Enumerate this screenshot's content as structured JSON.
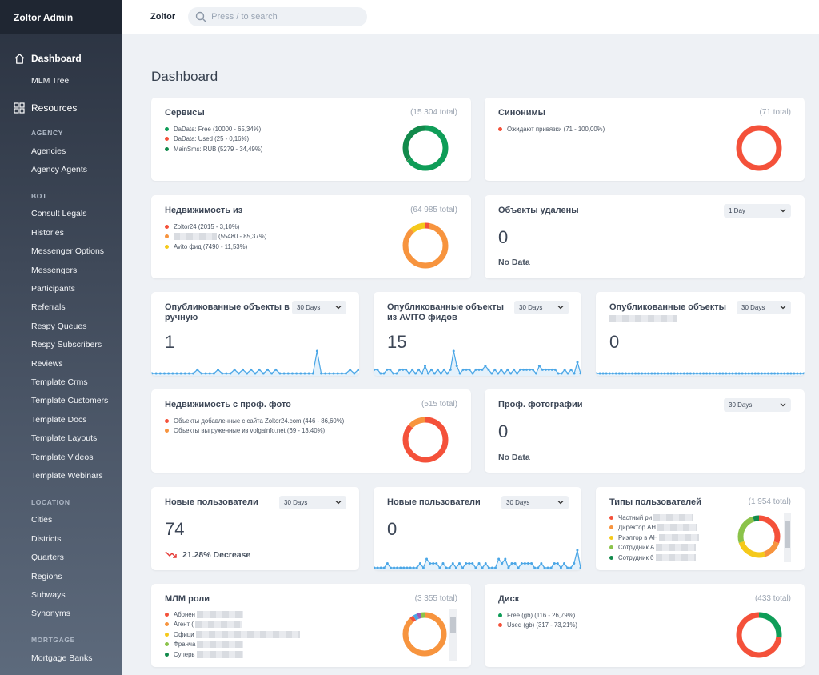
{
  "brand": "Zoltor Admin",
  "header": {
    "app": "Zoltor",
    "search_placeholder": "Press / to search"
  },
  "page_title": "Dashboard",
  "sidebar": {
    "dashboard": "Dashboard",
    "mlm_tree": "MLM Tree",
    "resources": "Resources",
    "sections": [
      {
        "title": "AGENCY",
        "items": [
          "Agencies",
          "Agency Agents"
        ]
      },
      {
        "title": "BOT",
        "items": [
          "Consult Legals",
          "Histories",
          "Messenger Options",
          "Messengers",
          "Participants",
          "Referrals",
          "Respy Queues",
          "Respy Subscribers",
          "Reviews",
          "Template Crms",
          "Template Customers",
          "Template Docs",
          "Template Layouts",
          "Template Videos",
          "Template Webinars"
        ]
      },
      {
        "title": "LOCATION",
        "items": [
          "Cities",
          "Districts",
          "Quarters",
          "Regions",
          "Subways",
          "Synonyms"
        ]
      },
      {
        "title": "MORTGAGE",
        "items": [
          "Mortgage Banks"
        ]
      }
    ]
  },
  "colors": {
    "green": "#0f9d58",
    "red": "#f4513a",
    "orange": "#f7943e",
    "yellow": "#f5c91b",
    "lightgreen": "#8bc34a",
    "darkgreen": "#128a4b",
    "blue": "#4aa6e6"
  },
  "cards": {
    "services": {
      "title": "Сервисы",
      "total": "(15 304 total)",
      "legend": [
        {
          "label": "DaData: Free (10000 - 65,34%)",
          "color": "#0f9d58"
        },
        {
          "label": "DaData: Used (25 - 0,16%)",
          "color": "#f4513a"
        },
        {
          "label": "MainSms: RUB (5279 - 34,49%)",
          "color": "#128a4b"
        }
      ]
    },
    "synonyms": {
      "title": "Синонимы",
      "total": "(71 total)",
      "legend": [
        {
          "label": "Ожидают привязки (71 - 100,00%)",
          "color": "#f4513a"
        }
      ]
    },
    "realty": {
      "title": "Недвижимость из",
      "total": "(64 985 total)",
      "legend": [
        {
          "label": "Zoltor24 (2015 - 3,10%)",
          "color": "#f4513a"
        },
        {
          "label": "(55480 - 85,37%)",
          "color": "#f7943e"
        },
        {
          "label": "Avito фид (7490 - 11,53%)",
          "color": "#f5c91b"
        }
      ]
    },
    "deleted": {
      "title": "Объекты удалены",
      "select": "1 Day",
      "value": "0",
      "nodata": "No Data"
    },
    "published_manual": {
      "title": "Опубликованные объекты в ручную",
      "select": "30 Days",
      "value": "1"
    },
    "published_avito": {
      "title": "Опубликованные объекты из AVITO фидов",
      "select": "30 Days",
      "value": "15"
    },
    "published_other": {
      "title": "Опубликованные объекты",
      "select": "30 Days",
      "value": "0"
    },
    "prof_photo_realty": {
      "title": "Недвижимость с проф. фото",
      "total": "(515 total)",
      "legend": [
        {
          "label": "Объекты добавленные с сайта Zoltor24.com (446 - 86,60%)",
          "color": "#f4513a"
        },
        {
          "label": "Объекты выгруженные из volgainfo.net (69 - 13,40%)",
          "color": "#f7943e"
        }
      ]
    },
    "prof_photos": {
      "title": "Проф. фотографии",
      "select": "30 Days",
      "value": "0",
      "nodata": "No Data"
    },
    "new_users_a": {
      "title": "Новые пользователи",
      "select": "30 Days",
      "value": "74",
      "trend": "21.28% Decrease"
    },
    "new_users_b": {
      "title": "Новые пользователи",
      "select": "30 Days",
      "value": "0"
    },
    "user_types": {
      "title": "Типы пользователей",
      "total": "(1 954 total)",
      "legend": [
        {
          "label": "Частный ри",
          "color": "#f4513a"
        },
        {
          "label": "Директор АН",
          "color": "#f7943e"
        },
        {
          "label": "Риэлтор в АН",
          "color": "#f5c91b"
        },
        {
          "label": "Сотрудник А",
          "color": "#8bc34a"
        },
        {
          "label": "Сотрудник б",
          "color": "#128a4b"
        }
      ]
    },
    "mlm_roles": {
      "title": "МЛМ роли",
      "total": "(3 355 total)",
      "legend": [
        {
          "label": "Абонен",
          "color": "#f4513a"
        },
        {
          "label": "Агент (",
          "color": "#f7943e"
        },
        {
          "label": "Офици",
          "color": "#f5c91b"
        },
        {
          "label": "Франча",
          "color": "#8bc34a"
        },
        {
          "label": "Суперв",
          "color": "#128a4b"
        }
      ]
    },
    "disk": {
      "title": "Диск",
      "total": "(433 total)",
      "legend": [
        {
          "label": "Free (gb) (116 - 26,79%)",
          "color": "#0f9d58"
        },
        {
          "label": "Used (gb) (317 - 73,21%)",
          "color": "#f4513a"
        }
      ]
    }
  },
  "donuts": {
    "services": [
      {
        "value": 65.34,
        "color": "#0f9d58"
      },
      {
        "value": 0.16,
        "color": "#f4513a"
      },
      {
        "value": 34.49,
        "color": "#128a4b"
      }
    ],
    "synonyms": [
      {
        "value": 100,
        "color": "#f4513a"
      }
    ],
    "realty": [
      {
        "value": 3.1,
        "color": "#f4513a"
      },
      {
        "value": 85.37,
        "color": "#f7943e"
      },
      {
        "value": 11.53,
        "color": "#f5c91b"
      }
    ],
    "prof_photo_realty": [
      {
        "value": 86.6,
        "color": "#f4513a"
      },
      {
        "value": 13.4,
        "color": "#f7943e"
      }
    ],
    "user_types": [
      {
        "value": 30,
        "color": "#f4513a"
      },
      {
        "value": 15,
        "color": "#f7943e"
      },
      {
        "value": 25,
        "color": "#f5c91b"
      },
      {
        "value": 25,
        "color": "#8bc34a"
      },
      {
        "value": 5,
        "color": "#128a4b"
      }
    ],
    "mlm_roles": [
      {
        "value": 88,
        "color": "#f7943e"
      },
      {
        "value": 3,
        "color": "#f4513a"
      },
      {
        "value": 3,
        "color": "#4aa6e6"
      },
      {
        "value": 3,
        "color": "#9b59b6"
      },
      {
        "value": 3,
        "color": "#8bc34a"
      }
    ],
    "disk": [
      {
        "value": 26.79,
        "color": "#0f9d58"
      },
      {
        "value": 73.21,
        "color": "#f4513a"
      }
    ]
  },
  "sparks": {
    "published_manual": [
      0,
      0,
      0,
      0,
      0,
      0,
      0,
      0,
      0,
      0,
      0,
      1,
      0,
      0,
      0,
      0,
      1,
      0,
      0,
      0,
      1,
      0,
      1,
      0,
      1,
      0,
      1,
      0,
      1,
      0,
      1,
      0,
      0,
      0,
      0,
      0,
      0,
      0,
      0,
      0,
      6,
      0,
      0,
      0,
      0,
      0,
      0,
      0,
      1,
      0,
      1
    ],
    "published_avito": [
      1,
      1,
      0,
      0,
      1,
      1,
      0,
      0,
      1,
      1,
      1,
      0,
      1,
      0,
      1,
      0,
      2,
      0,
      1,
      0,
      1,
      0,
      1,
      0,
      1,
      6,
      2,
      0,
      1,
      1,
      1,
      0,
      1,
      1,
      1,
      2,
      1,
      0,
      1,
      0,
      1,
      0,
      1,
      0,
      1,
      0,
      1,
      1,
      1,
      1,
      1,
      0,
      2,
      1,
      1,
      1,
      1,
      1,
      0,
      0,
      1,
      0,
      1,
      0,
      3,
      0
    ],
    "published_other": [
      0,
      0,
      0,
      0,
      0,
      0,
      0,
      0,
      0,
      0,
      0,
      0,
      0,
      0,
      0,
      0,
      0,
      0,
      0,
      0,
      0,
      0,
      0,
      0,
      0,
      0,
      0,
      0,
      0,
      0,
      0,
      0,
      0,
      0,
      0,
      0,
      0,
      0,
      0,
      0,
      0,
      0,
      0,
      0,
      0,
      0,
      0,
      0,
      0,
      0,
      0,
      0,
      0,
      0,
      0,
      0,
      0,
      0,
      0,
      0,
      0,
      0,
      0,
      0,
      0
    ],
    "new_users_b": [
      0,
      0,
      0,
      0,
      1,
      0,
      0,
      0,
      0,
      0,
      0,
      0,
      0,
      0,
      1,
      0,
      2,
      1,
      1,
      1,
      0,
      1,
      0,
      0,
      1,
      0,
      1,
      0,
      1,
      1,
      1,
      0,
      1,
      0,
      1,
      0,
      0,
      0,
      2,
      1,
      2,
      0,
      1,
      1,
      0,
      1,
      1,
      1,
      1,
      0,
      0,
      1,
      0,
      0,
      0,
      1,
      1,
      0,
      1,
      0,
      0,
      1,
      4,
      0
    ]
  }
}
